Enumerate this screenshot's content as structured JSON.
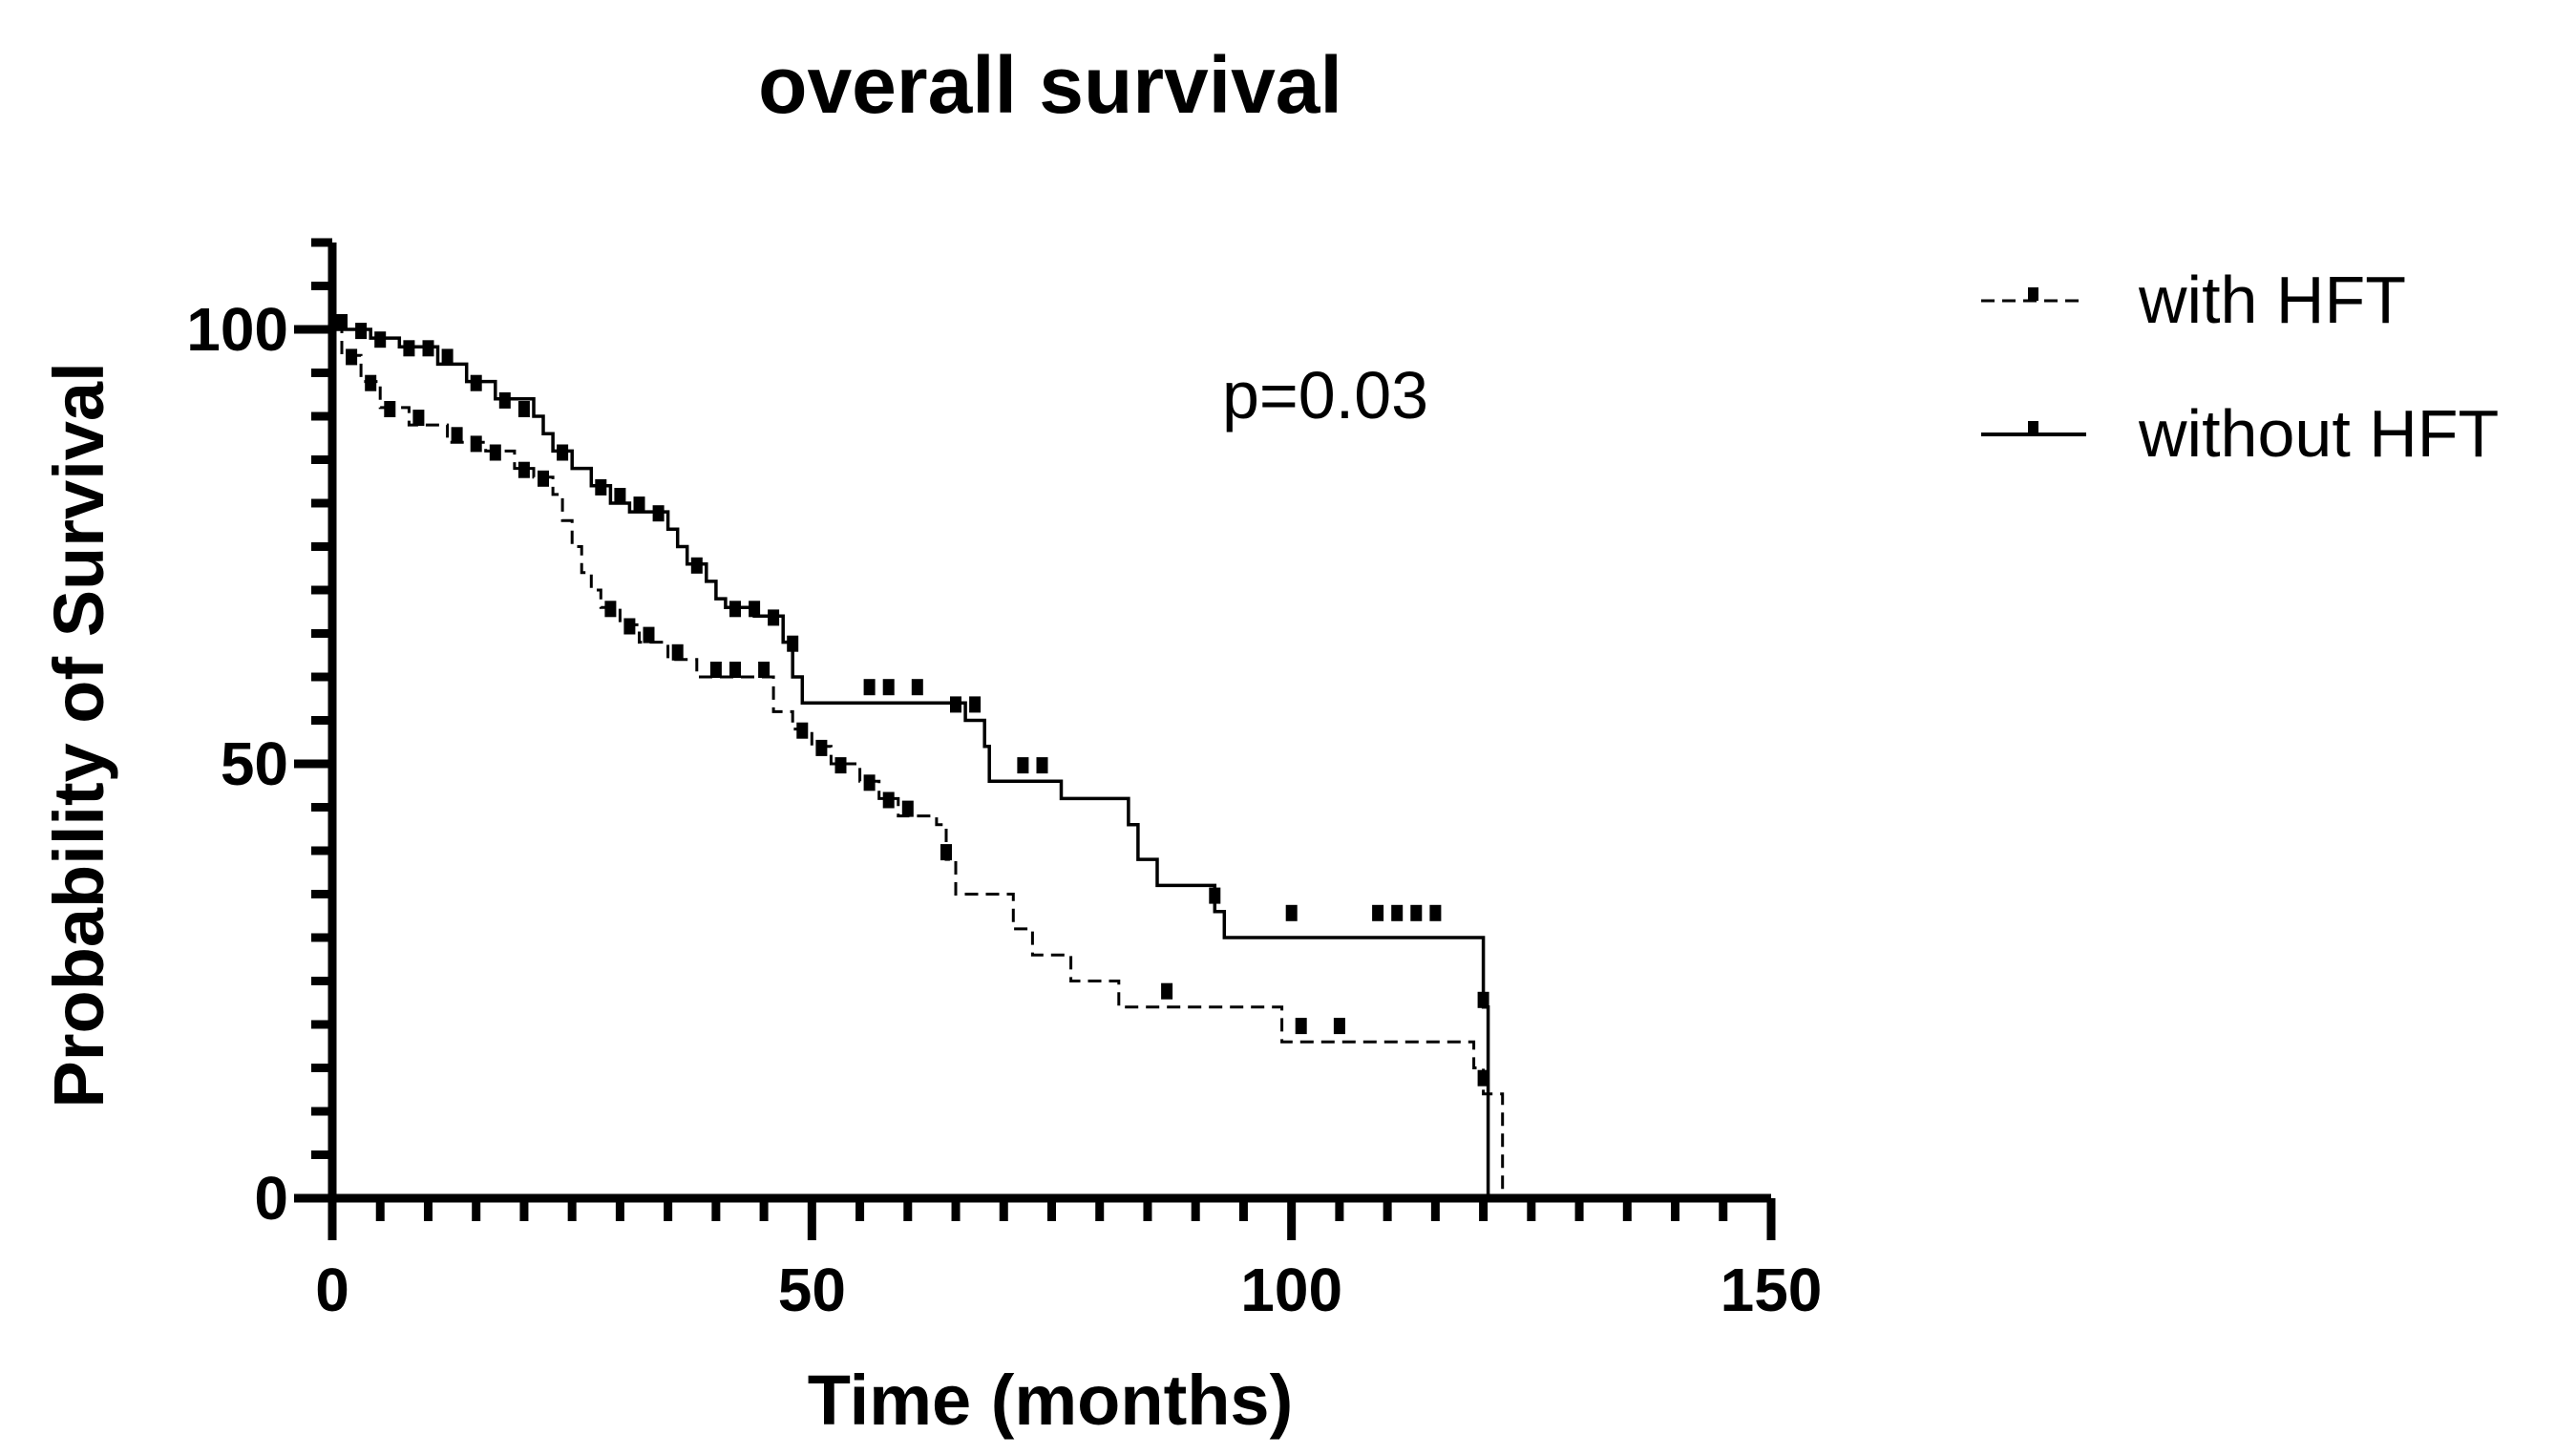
{
  "chart_data": {
    "type": "line",
    "subtype": "kaplan-meier",
    "title": "overall survival",
    "xlabel": "Time (months)",
    "ylabel": "Probability of Survival",
    "xlim": [
      0,
      150
    ],
    "ylim": [
      0,
      110
    ],
    "xticks": [
      0,
      50,
      100,
      150
    ],
    "yticks": [
      0,
      50,
      100
    ],
    "xtick_labels": [
      "0",
      "50",
      "100",
      "150"
    ],
    "ytick_labels": [
      "0",
      "50",
      "100"
    ],
    "annotation": "p=0.03",
    "legend_position": "top-right",
    "series": [
      {
        "name": "with HFT",
        "style": "dashed",
        "steps": [
          [
            0,
            100
          ],
          [
            1,
            97
          ],
          [
            3,
            94
          ],
          [
            5,
            91
          ],
          [
            8,
            89
          ],
          [
            12,
            87
          ],
          [
            16,
            86
          ],
          [
            19,
            84
          ],
          [
            21,
            83
          ],
          [
            23,
            81
          ],
          [
            24,
            78
          ],
          [
            25,
            75
          ],
          [
            26,
            72
          ],
          [
            27,
            70
          ],
          [
            28,
            68
          ],
          [
            30,
            66
          ],
          [
            32,
            64
          ],
          [
            35,
            62
          ],
          [
            38,
            60
          ],
          [
            46,
            56
          ],
          [
            48,
            54
          ],
          [
            50,
            52
          ],
          [
            52,
            50
          ],
          [
            55,
            48
          ],
          [
            57,
            46
          ],
          [
            59,
            44
          ],
          [
            63,
            43
          ],
          [
            64,
            39
          ],
          [
            65,
            35
          ],
          [
            71,
            31
          ],
          [
            73,
            28
          ],
          [
            77,
            25
          ],
          [
            82,
            22
          ],
          [
            86,
            22
          ],
          [
            93,
            22
          ],
          [
            99,
            18
          ],
          [
            119,
            15
          ],
          [
            120,
            12
          ],
          [
            122,
            0
          ]
        ],
        "censored": [
          [
            2,
            96
          ],
          [
            4,
            93
          ],
          [
            6,
            90
          ],
          [
            9,
            89
          ],
          [
            13,
            87
          ],
          [
            15,
            86
          ],
          [
            17,
            85
          ],
          [
            20,
            83
          ],
          [
            22,
            82
          ],
          [
            29,
            67
          ],
          [
            31,
            65
          ],
          [
            33,
            64
          ],
          [
            36,
            62
          ],
          [
            40,
            60
          ],
          [
            42,
            60
          ],
          [
            45,
            60
          ],
          [
            49,
            53
          ],
          [
            51,
            51
          ],
          [
            53,
            49
          ],
          [
            56,
            47
          ],
          [
            58,
            45
          ],
          [
            60,
            44
          ],
          [
            64,
            39
          ],
          [
            87,
            23
          ],
          [
            101,
            19
          ],
          [
            105,
            19
          ],
          [
            120,
            13
          ]
        ]
      },
      {
        "name": "without HFT",
        "style": "solid",
        "steps": [
          [
            0,
            100
          ],
          [
            4,
            99
          ],
          [
            7,
            98
          ],
          [
            11,
            96
          ],
          [
            14,
            94
          ],
          [
            17,
            92
          ],
          [
            21,
            90
          ],
          [
            22,
            88
          ],
          [
            23,
            86
          ],
          [
            25,
            84
          ],
          [
            27,
            82
          ],
          [
            29,
            80
          ],
          [
            31,
            79
          ],
          [
            35,
            77
          ],
          [
            36,
            75
          ],
          [
            37,
            73
          ],
          [
            39,
            71
          ],
          [
            40,
            69
          ],
          [
            41,
            68
          ],
          [
            44,
            67
          ],
          [
            47,
            64
          ],
          [
            48,
            60
          ],
          [
            49,
            57
          ],
          [
            50,
            57
          ],
          [
            66,
            55
          ],
          [
            68,
            52
          ],
          [
            68.5,
            48
          ],
          [
            73,
            48
          ],
          [
            76,
            46
          ],
          [
            83,
            43
          ],
          [
            84,
            39
          ],
          [
            86,
            36
          ],
          [
            92,
            33
          ],
          [
            93,
            30
          ],
          [
            119,
            30
          ],
          [
            120,
            22
          ],
          [
            120.5,
            0
          ]
        ],
        "censored": [
          [
            1,
            100
          ],
          [
            3,
            99
          ],
          [
            5,
            98
          ],
          [
            8,
            97
          ],
          [
            10,
            97
          ],
          [
            12,
            96
          ],
          [
            15,
            93
          ],
          [
            18,
            91
          ],
          [
            20,
            90
          ],
          [
            24,
            85
          ],
          [
            28,
            81
          ],
          [
            30,
            80
          ],
          [
            32,
            79
          ],
          [
            34,
            78
          ],
          [
            38,
            72
          ],
          [
            42,
            67
          ],
          [
            44,
            67
          ],
          [
            46,
            66
          ],
          [
            48,
            63
          ],
          [
            56,
            58
          ],
          [
            58,
            58
          ],
          [
            61,
            58
          ],
          [
            65,
            56
          ],
          [
            67,
            56
          ],
          [
            72,
            49
          ],
          [
            74,
            49
          ],
          [
            92,
            34
          ],
          [
            100,
            32
          ],
          [
            109,
            32
          ],
          [
            111,
            32
          ],
          [
            113,
            32
          ],
          [
            115,
            32
          ],
          [
            120,
            22
          ]
        ]
      }
    ]
  }
}
